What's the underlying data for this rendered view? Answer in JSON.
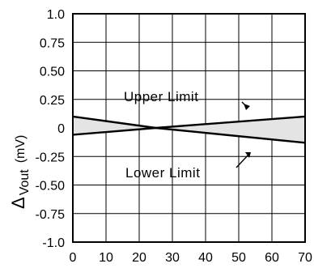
{
  "chart_data": {
    "type": "area",
    "xlim": [
      0,
      70
    ],
    "ylim": [
      -1.0,
      1.0
    ],
    "x_ticks": [
      "0",
      "10",
      "20",
      "30",
      "40",
      "50",
      "60",
      "70"
    ],
    "y_ticks": [
      "1.0",
      "0.75",
      "0.50",
      "0.25",
      "0",
      "-0.25",
      "-0.50",
      "-0.75",
      "-1.0"
    ],
    "y_tick_values": [
      1.0,
      0.75,
      0.5,
      0.25,
      0,
      -0.25,
      -0.5,
      -0.75,
      -1.0
    ],
    "x_tick_values": [
      0,
      10,
      20,
      30,
      40,
      50,
      60,
      70
    ],
    "ylabel_symbol": "Δ",
    "ylabel_sub": "Vout",
    "ylabel_unit": "(mV)",
    "grid": true,
    "fill_color": "#e4e4e4",
    "series": [
      {
        "name": "Upper Limit",
        "x": [
          0,
          25,
          70
        ],
        "y": [
          -0.06,
          0.0,
          0.1
        ]
      },
      {
        "name": "Lower Limit",
        "x": [
          0,
          25,
          70
        ],
        "y": [
          0.1,
          0.0,
          -0.13
        ]
      }
    ],
    "annotations": [
      {
        "text": "Upper Limit",
        "series": "Upper Limit"
      },
      {
        "text": "Lower Limit",
        "series": "Lower Limit"
      }
    ]
  }
}
